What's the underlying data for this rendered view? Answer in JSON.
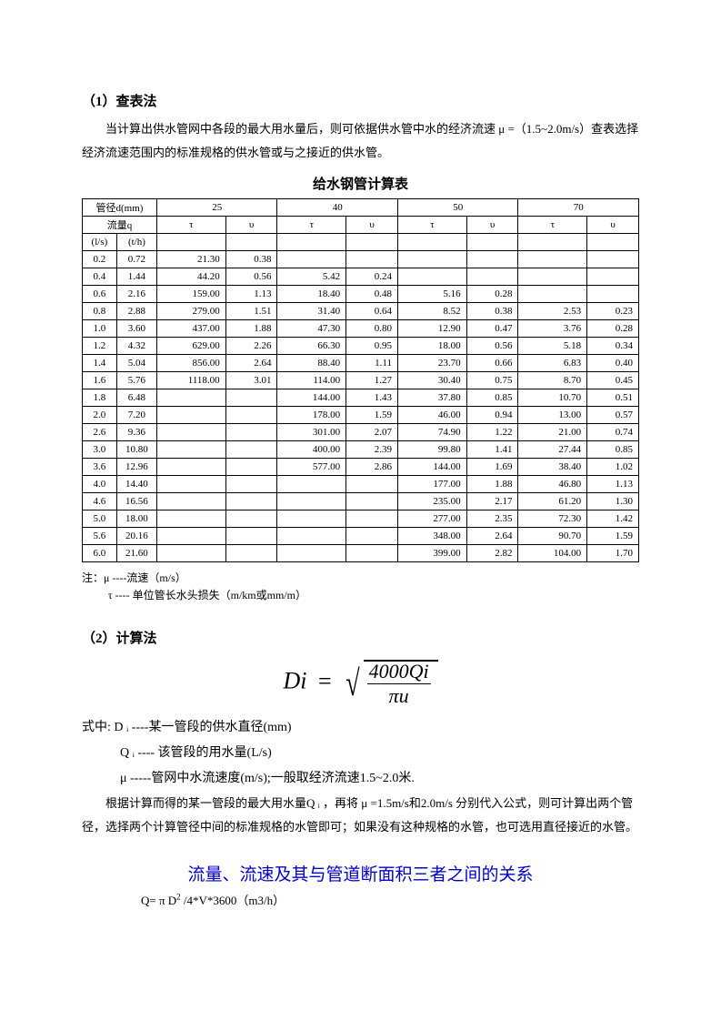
{
  "section1": {
    "head": "（1）查表法",
    "para": "当计算出供水管网中各段的最大用水量后，则可依据供水管中水的经济流速 μ =（1.5~2.0m/s）查表选择经济流速范围内的标准规格的供水管或与之接近的供水管。",
    "table_title": "给水钢管计算表"
  },
  "table": {
    "header": {
      "diam_label": "管径d(mm)",
      "diam_vals": [
        "25",
        "40",
        "50",
        "70"
      ],
      "flow_label": "流量q",
      "tau": "τ",
      "ups": "υ",
      "ls": "(l/s)",
      "th": "(t/h)"
    },
    "rows": [
      {
        "ls": "0.2",
        "th": "0.72",
        "d25t": "21.30",
        "d25u": "0.38",
        "d40t": "",
        "d40u": "",
        "d50t": "",
        "d50u": "",
        "d70t": "",
        "d70u": ""
      },
      {
        "ls": "0.4",
        "th": "1.44",
        "d25t": "44.20",
        "d25u": "0.56",
        "d40t": "5.42",
        "d40u": "0.24",
        "d50t": "",
        "d50u": "",
        "d70t": "",
        "d70u": ""
      },
      {
        "ls": "0.6",
        "th": "2.16",
        "d25t": "159.00",
        "d25u": "1.13",
        "d40t": "18.40",
        "d40u": "0.48",
        "d50t": "5.16",
        "d50u": "0.28",
        "d70t": "",
        "d70u": ""
      },
      {
        "ls": "0.8",
        "th": "2.88",
        "d25t": "279.00",
        "d25u": "1.51",
        "d40t": "31.40",
        "d40u": "0.64",
        "d50t": "8.52",
        "d50u": "0.38",
        "d70t": "2.53",
        "d70u": "0.23"
      },
      {
        "ls": "1.0",
        "th": "3.60",
        "d25t": "437.00",
        "d25u": "1.88",
        "d40t": "47.30",
        "d40u": "0.80",
        "d50t": "12.90",
        "d50u": "0.47",
        "d70t": "3.76",
        "d70u": "0.28"
      },
      {
        "ls": "1.2",
        "th": "4.32",
        "d25t": "629.00",
        "d25u": "2.26",
        "d40t": "66.30",
        "d40u": "0.95",
        "d50t": "18.00",
        "d50u": "0.56",
        "d70t": "5.18",
        "d70u": "0.34"
      },
      {
        "ls": "1.4",
        "th": "5.04",
        "d25t": "856.00",
        "d25u": "2.64",
        "d40t": "88.40",
        "d40u": "1.11",
        "d50t": "23.70",
        "d50u": "0.66",
        "d70t": "6.83",
        "d70u": "0.40"
      },
      {
        "ls": "1.6",
        "th": "5.76",
        "d25t": "1118.00",
        "d25u": "3.01",
        "d40t": "114.00",
        "d40u": "1.27",
        "d50t": "30.40",
        "d50u": "0.75",
        "d70t": "8.70",
        "d70u": "0.45"
      },
      {
        "ls": "1.8",
        "th": "6.48",
        "d25t": "",
        "d25u": "",
        "d40t": "144.00",
        "d40u": "1.43",
        "d50t": "37.80",
        "d50u": "0.85",
        "d70t": "10.70",
        "d70u": "0.51"
      },
      {
        "ls": "2.0",
        "th": "7.20",
        "d25t": "",
        "d25u": "",
        "d40t": "178.00",
        "d40u": "1.59",
        "d50t": "46.00",
        "d50u": "0.94",
        "d70t": "13.00",
        "d70u": "0.57"
      },
      {
        "ls": "2.6",
        "th": "9.36",
        "d25t": "",
        "d25u": "",
        "d40t": "301.00",
        "d40u": "2.07",
        "d50t": "74.90",
        "d50u": "1.22",
        "d70t": "21.00",
        "d70u": "0.74"
      },
      {
        "ls": "3.0",
        "th": "10.80",
        "d25t": "",
        "d25u": "",
        "d40t": "400.00",
        "d40u": "2.39",
        "d50t": "99.80",
        "d50u": "1.41",
        "d70t": "27.44",
        "d70u": "0.85"
      },
      {
        "ls": "3.6",
        "th": "12.96",
        "d25t": "",
        "d25u": "",
        "d40t": "577.00",
        "d40u": "2.86",
        "d50t": "144.00",
        "d50u": "1.69",
        "d70t": "38.40",
        "d70u": "1.02"
      },
      {
        "ls": "4.0",
        "th": "14.40",
        "d25t": "",
        "d25u": "",
        "d40t": "",
        "d40u": "",
        "d50t": "177.00",
        "d50u": "1.88",
        "d70t": "46.80",
        "d70u": "1.13"
      },
      {
        "ls": "4.6",
        "th": "16.56",
        "d25t": "",
        "d25u": "",
        "d40t": "",
        "d40u": "",
        "d50t": "235.00",
        "d50u": "2.17",
        "d70t": "61.20",
        "d70u": "1.30"
      },
      {
        "ls": "5.0",
        "th": "18.00",
        "d25t": "",
        "d25u": "",
        "d40t": "",
        "d40u": "",
        "d50t": "277.00",
        "d50u": "2.35",
        "d70t": "72.30",
        "d70u": "1.42"
      },
      {
        "ls": "5.6",
        "th": "20.16",
        "d25t": "",
        "d25u": "",
        "d40t": "",
        "d40u": "",
        "d50t": "348.00",
        "d50u": "2.64",
        "d70t": "90.70",
        "d70u": "1.59"
      },
      {
        "ls": "6.0",
        "th": "21.60",
        "d25t": "",
        "d25u": "",
        "d40t": "",
        "d40u": "",
        "d50t": "399.00",
        "d50u": "2.82",
        "d70t": "104.00",
        "d70u": "1.70"
      }
    ]
  },
  "note": {
    "l1": "注：μ ----流速（m/s）",
    "l2": "τ ---- 单位管长水头损失（m/km或mm/m）"
  },
  "section2": {
    "head": "（2）计算法",
    "lhs": "Di",
    "numerator": "4000Qi",
    "denominator": "πu",
    "def_intro": "式中:  D ᵢ ----某一管段的供水直径(mm)",
    "def_q": "Q ᵢ ---- 该管段的用水量(L/s)",
    "def_mu": "μ -----管网中水流速度(m/s);一般取经济流速1.5~2.0米.",
    "para": "根据计算而得的某一管段的最大用水量Q ᵢ ，再将 μ =1.5m/s和2.0m/s 分别代入公式，则可计算出两个管径，选择两个计算管径中间的标准规格的水管即可；如果没有这种规格的水管，也可选用直径接近的水管。"
  },
  "section3": {
    "title": "流量、流速及其与管道断面积三者之间的关系",
    "eq": "Q= π D² /4*V*3600（m3/h）"
  },
  "colors": {
    "text": "#000000",
    "accent": "#0000cc",
    "background": "#ffffff",
    "border": "#000000"
  }
}
